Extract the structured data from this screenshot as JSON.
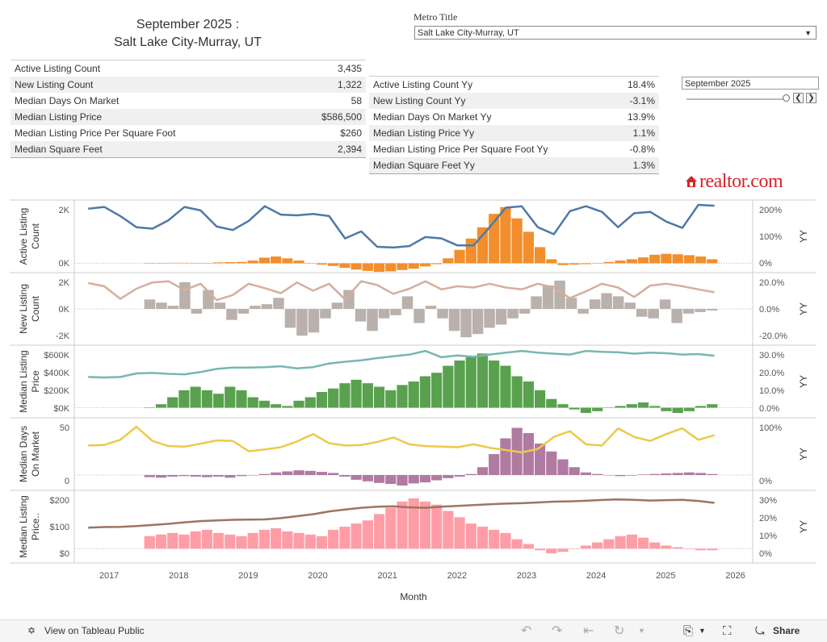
{
  "header": {
    "title_line1": "September 2025 :",
    "title_line2": "Salt Lake City-Murray, UT"
  },
  "filter": {
    "label": "Metro Title",
    "value": "Salt Lake City-Murray, UT",
    "date_value": "September 2025"
  },
  "kpi_left": [
    {
      "label": "Active Listing Count",
      "value": "3,435"
    },
    {
      "label": "New Listing Count",
      "value": "1,322"
    },
    {
      "label": "Median Days On Market",
      "value": "58"
    },
    {
      "label": "Median Listing Price",
      "value": "$586,500"
    },
    {
      "label": "Median Listing Price Per Square Foot",
      "value": "$260"
    },
    {
      "label": "Median Square Feet",
      "value": "2,394"
    }
  ],
  "kpi_right": [
    {
      "label": "Active Listing Count Yy",
      "value": "18.4%"
    },
    {
      "label": "New Listing Count Yy",
      "value": "-3.1%"
    },
    {
      "label": "Median Days On Market Yy",
      "value": "13.9%"
    },
    {
      "label": "Median Listing Price Yy",
      "value": "1.1%"
    },
    {
      "label": "Median Listing Price Per Square Foot Yy",
      "value": "-0.8%"
    },
    {
      "label": "Median Square Feet Yy",
      "value": "1.3%"
    }
  ],
  "logo": {
    "text": "realtor.com"
  },
  "footer": {
    "view_label": "View on Tableau Public",
    "share_label": "Share"
  },
  "colors": {
    "active_line": "#4e79a7",
    "active_bar": "#f28e2b",
    "new_line": "#d6ae9c",
    "new_bar": "#bab0ac",
    "price_line": "#76b7b2",
    "price_bar": "#59a14f",
    "dom_line": "#edc948",
    "dom_bar": "#b07aa1",
    "ppsf_line": "#9c755f",
    "ppsf_bar": "#ff9da7"
  },
  "chart_data": {
    "type": "line",
    "xlabel": "Month",
    "x_ticks": [
      "2017",
      "2018",
      "2019",
      "2020",
      "2021",
      "2022",
      "2023",
      "2024",
      "2025",
      "2026"
    ],
    "x_range": [
      2016.5,
      2026.25
    ],
    "bar_start": 2017.5,
    "panels": [
      {
        "name": "active-listing",
        "ylabel": "Active Listing Count",
        "y2label": "YY",
        "yticks": [
          "2K",
          "0K"
        ],
        "y2ticks": [
          "200%",
          "100%",
          "0%"
        ],
        "line_range": [
          -1000,
          3500
        ],
        "bar_range": [
          -20,
          260
        ],
        "y2_range": [
          -20,
          260
        ],
        "line": [
          3224,
          3350,
          2700,
          1900,
          1800,
          2400,
          3350,
          3100,
          1950,
          1700,
          2350,
          3400,
          2800,
          2750,
          2850,
          2700,
          1100,
          1600,
          500,
          450,
          550,
          1200,
          1100,
          600,
          600,
          1900,
          3300,
          3400,
          1900,
          1400,
          3050,
          3400,
          3000,
          1900,
          2900,
          3000,
          2300,
          1850,
          3500,
          3435
        ],
        "bars": [
          0,
          1,
          2,
          2,
          1,
          1,
          4,
          5,
          6,
          12,
          25,
          30,
          22,
          12,
          0,
          -6,
          -12,
          -20,
          -28,
          -34,
          -38,
          -36,
          -30,
          -24,
          -14,
          -4,
          22,
          60,
          110,
          160,
          220,
          250,
          200,
          140,
          72,
          18,
          -8,
          -6,
          -4,
          0,
          6,
          12,
          18,
          26,
          38,
          42,
          40,
          36,
          30,
          18
        ]
      },
      {
        "name": "new-listing",
        "ylabel": "New Listing Count",
        "y2label": "YY",
        "yticks": [
          "2K",
          "0K",
          "-2K"
        ],
        "y2ticks": [
          "20.0%",
          "0.0%",
          "-20.0%"
        ],
        "line_range": [
          -2500,
          2500
        ],
        "bar_range": [
          -40,
          40
        ],
        "y2_range": [
          -40,
          40
        ],
        "line": [
          2050,
          1800,
          800,
          1600,
          2100,
          2200,
          1500,
          2000,
          700,
          1100,
          2000,
          1650,
          1250,
          2100,
          1450,
          2000,
          750,
          2200,
          1900,
          1200,
          1600,
          2200,
          1550,
          1800,
          1700,
          2000,
          1700,
          1550,
          2000,
          1700,
          850,
          1400,
          2000,
          1700,
          950,
          1850,
          2000,
          1800,
          1550,
          1322
        ],
        "bars": [
          12,
          8,
          4,
          34,
          -6,
          24,
          8,
          -14,
          -6,
          4,
          6,
          14,
          -24,
          -34,
          -30,
          -12,
          8,
          24,
          -16,
          -28,
          -12,
          -8,
          16,
          -18,
          4,
          -12,
          -28,
          -36,
          -32,
          -24,
          -20,
          -12,
          -6,
          16,
          30,
          36,
          14,
          -6,
          12,
          20,
          16,
          8,
          -10,
          -12,
          12,
          -18,
          -6,
          -4,
          -2
        ]
      },
      {
        "name": "median-listing-price",
        "ylabel": "Median Listing Price",
        "y2label": "YY",
        "yticks": [
          "$600K",
          "$400K",
          "$200K",
          "$0K"
        ],
        "y2ticks": [
          "30.0%",
          "20.0%",
          "10.0%",
          "0.0%"
        ],
        "line_range": [
          -50000,
          650000
        ],
        "bar_range": [
          -3,
          33
        ],
        "y2_range": [
          -3,
          33
        ],
        "line": [
          350000,
          345000,
          350000,
          390000,
          395000,
          385000,
          380000,
          405000,
          440000,
          455000,
          455000,
          460000,
          470000,
          445000,
          460000,
          500000,
          520000,
          535000,
          560000,
          580000,
          600000,
          640000,
          570000,
          590000,
          575000,
          600000,
          620000,
          640000,
          620000,
          610000,
          600000,
          640000,
          630000,
          625000,
          610000,
          620000,
          615000,
          600000,
          605000,
          586500
        ],
        "bars": [
          0,
          2,
          6,
          10,
          12,
          10,
          8,
          12,
          10,
          6,
          4,
          2,
          1,
          4,
          6,
          9,
          11,
          14,
          16,
          14,
          12,
          10,
          13,
          15,
          18,
          20,
          24,
          27,
          29,
          31,
          27,
          24,
          18,
          15,
          10,
          5,
          2,
          -1,
          -3,
          -2,
          0,
          1,
          2,
          3,
          1,
          -2,
          -3,
          -2,
          1,
          2
        ]
      },
      {
        "name": "median-days-on-market",
        "ylabel": "Median Days On Market",
        "y2label": "YY",
        "yticks": [
          "50",
          "0"
        ],
        "y2ticks": [
          "100%",
          "0%"
        ],
        "line_range": [
          -30,
          80
        ],
        "bar_range": [
          -40,
          200
        ],
        "y2_range": [
          -40,
          200
        ],
        "line": [
          40,
          41,
          50,
          73,
          48,
          39,
          38,
          43,
          49,
          48,
          30,
          33,
          37,
          47,
          60,
          44,
          40,
          41,
          46,
          54,
          42,
          39,
          38,
          37,
          42,
          36,
          32,
          28,
          34,
          55,
          65,
          42,
          40,
          70,
          55,
          48,
          60,
          70,
          50,
          58
        ],
        "bars": [
          -8,
          -10,
          -6,
          -4,
          -6,
          -8,
          -6,
          -10,
          -4,
          0,
          4,
          10,
          14,
          18,
          16,
          12,
          8,
          -6,
          -18,
          -24,
          -30,
          -34,
          -40,
          -32,
          -28,
          -20,
          -12,
          -6,
          4,
          30,
          80,
          140,
          180,
          160,
          120,
          90,
          60,
          30,
          10,
          4,
          0,
          -4,
          -2,
          2,
          4,
          6,
          8,
          10,
          8,
          4
        ]
      },
      {
        "name": "median-ppsf",
        "ylabel": "Median Listing Price Per Square Foot",
        "y2label": "YY",
        "yticks": [
          "$200",
          "$100",
          "$0"
        ],
        "y2ticks": [
          "30%",
          "20%",
          "10%",
          "0%"
        ],
        "line_range": [
          -30,
          300
        ],
        "bar_range": [
          -6,
          34
        ],
        "y2_range": [
          -6,
          34
        ],
        "line": [
          130,
          133,
          134,
          138,
          144,
          150,
          158,
          164,
          168,
          171,
          172,
          173,
          180,
          190,
          200,
          215,
          225,
          234,
          240,
          242,
          236,
          234,
          240,
          244,
          248,
          252,
          256,
          258,
          262,
          266,
          268,
          271,
          275,
          278,
          276,
          272,
          274,
          276,
          270,
          260
        ],
        "bars": [
          8,
          9,
          10,
          9,
          11,
          12,
          10,
          9,
          8,
          10,
          12,
          13,
          11,
          10,
          9,
          8,
          12,
          14,
          16,
          18,
          22,
          26,
          30,
          32,
          30,
          28,
          24,
          20,
          16,
          14,
          12,
          10,
          6,
          3,
          -1,
          -3,
          -2,
          0,
          2,
          4,
          6,
          8,
          9,
          7,
          4,
          2,
          1,
          0,
          -1,
          -1
        ]
      }
    ]
  }
}
